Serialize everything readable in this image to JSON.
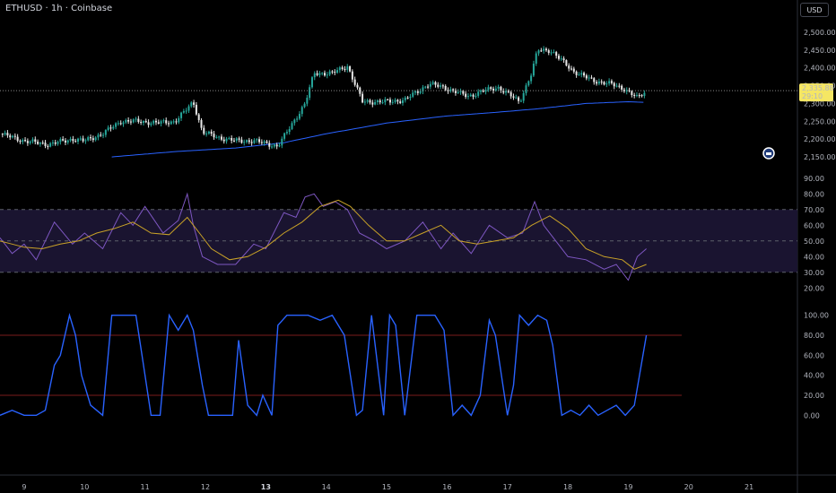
{
  "header": {
    "symbol_title": "ETHUSD · 1h · Coinbase",
    "currency_button": "USD"
  },
  "colors": {
    "background": "#000000",
    "up_candle": "#26a69a",
    "up_candle_light": "#c9e7c4",
    "ma_line": "#2962ff",
    "rsi_line": "#7e57c2",
    "rsi_ma": "#c9a227",
    "stoch_line": "#2962ff",
    "stoch_band": "#7a1c1c",
    "price_tag": "#f5e663"
  },
  "price_labels": {
    "last_price": "2,335.88",
    "countdown": "29:10"
  },
  "chart_data": [
    {
      "type": "candlestick",
      "y_ticks": [
        "2,500.00",
        "2,450.00",
        "2,400.00",
        "2,350.00",
        "2,300.00",
        "2,250.00",
        "2,200.00",
        "2,150.00"
      ],
      "y_tick_values": [
        2500,
        2450,
        2400,
        2350,
        2300,
        2250,
        2200,
        2150
      ],
      "ylim": [
        2125,
        2520
      ],
      "x_ticks": [
        "9",
        "10",
        "11",
        "12",
        "13",
        "14",
        "15",
        "16",
        "17",
        "18",
        "19",
        "20",
        "21"
      ],
      "bold_x_tick": "13",
      "x_tick_days": [
        9,
        10,
        11,
        12,
        13,
        14,
        15,
        16,
        17,
        18,
        19,
        20,
        21
      ],
      "xlim_days": [
        8.6,
        21.8
      ],
      "last_close": 2335.88,
      "close_anchors": [
        [
          8.6,
          2215
        ],
        [
          9.0,
          2195
        ],
        [
          9.4,
          2185
        ],
        [
          9.8,
          2200
        ],
        [
          10.0,
          2195
        ],
        [
          10.3,
          2215
        ],
        [
          10.6,
          2250
        ],
        [
          10.9,
          2250
        ],
        [
          11.2,
          2245
        ],
        [
          11.5,
          2250
        ],
        [
          11.7,
          2285
        ],
        [
          11.8,
          2305
        ],
        [
          11.95,
          2220
        ],
        [
          12.2,
          2205
        ],
        [
          12.5,
          2195
        ],
        [
          12.8,
          2195
        ],
        [
          13.2,
          2180
        ],
        [
          13.5,
          2260
        ],
        [
          13.65,
          2300
        ],
        [
          13.8,
          2385
        ],
        [
          14.1,
          2385
        ],
        [
          14.35,
          2405
        ],
        [
          14.6,
          2305
        ],
        [
          15.0,
          2305
        ],
        [
          15.3,
          2310
        ],
        [
          15.7,
          2355
        ],
        [
          15.95,
          2345
        ],
        [
          16.35,
          2320
        ],
        [
          16.6,
          2335
        ],
        [
          16.85,
          2345
        ],
        [
          17.2,
          2305
        ],
        [
          17.4,
          2385
        ],
        [
          17.5,
          2450
        ],
        [
          17.7,
          2450
        ],
        [
          17.9,
          2420
        ],
        [
          18.1,
          2390
        ],
        [
          18.4,
          2365
        ],
        [
          18.7,
          2355
        ],
        [
          18.95,
          2340
        ],
        [
          19.15,
          2315
        ],
        [
          19.3,
          2335.88
        ]
      ],
      "ma_anchors": [
        [
          10.45,
          2150
        ],
        [
          11.5,
          2165
        ],
        [
          12.5,
          2175
        ],
        [
          13.3,
          2190
        ],
        [
          14.0,
          2215
        ],
        [
          15.0,
          2245
        ],
        [
          16.0,
          2265
        ],
        [
          16.8,
          2275
        ],
        [
          17.5,
          2285
        ],
        [
          18.3,
          2300
        ],
        [
          19.0,
          2305
        ],
        [
          19.3,
          2303
        ]
      ]
    },
    {
      "type": "line",
      "indicator": "RSI",
      "y_ticks": [
        "90.00",
        "80.00",
        "70.00",
        "60.00",
        "50.00",
        "40.00",
        "30.00",
        "20.00"
      ],
      "y_tick_values": [
        90,
        80,
        70,
        60,
        50,
        40,
        30,
        20
      ],
      "ylim": [
        15,
        95
      ],
      "band": [
        30,
        70
      ],
      "midline": 50,
      "series": [
        {
          "role": "rsi",
          "x_days": [
            8.6,
            8.8,
            9.0,
            9.2,
            9.5,
            9.8,
            10.0,
            10.3,
            10.6,
            10.8,
            11.0,
            11.3,
            11.55,
            11.7,
            11.8,
            11.95,
            12.2,
            12.5,
            12.8,
            13.0,
            13.3,
            13.5,
            13.65,
            13.8,
            13.95,
            14.15,
            14.35,
            14.55,
            14.8,
            15.0,
            15.3,
            15.6,
            15.9,
            16.1,
            16.4,
            16.7,
            17.0,
            17.25,
            17.45,
            17.6,
            17.8,
            18.0,
            18.3,
            18.6,
            18.8,
            19.0,
            19.15,
            19.3
          ],
          "values": [
            52,
            42,
            48,
            38,
            62,
            48,
            55,
            45,
            68,
            60,
            72,
            55,
            63,
            80,
            60,
            40,
            35,
            35,
            48,
            45,
            68,
            65,
            78,
            80,
            72,
            75,
            70,
            55,
            50,
            45,
            50,
            62,
            45,
            55,
            42,
            60,
            52,
            55,
            75,
            60,
            50,
            40,
            38,
            32,
            35,
            25,
            40,
            45
          ]
        },
        {
          "role": "rsi_ma",
          "x_days": [
            8.6,
            8.8,
            9.0,
            9.3,
            9.6,
            9.9,
            10.2,
            10.5,
            10.8,
            11.1,
            11.4,
            11.7,
            11.9,
            12.1,
            12.4,
            12.7,
            13.0,
            13.3,
            13.6,
            13.9,
            14.2,
            14.4,
            14.7,
            15.0,
            15.3,
            15.6,
            15.9,
            16.2,
            16.5,
            16.8,
            17.1,
            17.4,
            17.7,
            18.0,
            18.3,
            18.6,
            18.9,
            19.1,
            19.3
          ],
          "values": [
            50,
            48,
            46,
            45,
            48,
            50,
            55,
            58,
            62,
            55,
            54,
            65,
            55,
            45,
            38,
            40,
            46,
            55,
            62,
            72,
            76,
            72,
            60,
            50,
            50,
            55,
            60,
            50,
            48,
            50,
            52,
            60,
            66,
            58,
            45,
            40,
            38,
            32,
            35
          ]
        }
      ]
    },
    {
      "type": "line",
      "indicator": "Stochastic RSI",
      "y_ticks": [
        "100.00",
        "80.00",
        "60.00",
        "40.00",
        "20.00",
        "0.00"
      ],
      "y_tick_values": [
        100,
        80,
        60,
        40,
        20,
        0
      ],
      "ylim": [
        -6,
        106
      ],
      "bands": [
        20,
        80
      ],
      "series": [
        {
          "role": "stoch",
          "x_days": [
            8.6,
            8.8,
            9.0,
            9.2,
            9.35,
            9.5,
            9.6,
            9.75,
            9.85,
            9.95,
            10.1,
            10.3,
            10.45,
            10.65,
            10.85,
            10.95,
            11.1,
            11.25,
            11.4,
            11.55,
            11.7,
            11.8,
            11.95,
            12.05,
            12.25,
            12.45,
            12.55,
            12.7,
            12.85,
            12.95,
            13.1,
            13.2,
            13.35,
            13.5,
            13.7,
            13.9,
            14.1,
            14.3,
            14.4,
            14.5,
            14.6,
            14.75,
            14.95,
            15.05,
            15.15,
            15.3,
            15.5,
            15.8,
            15.95,
            16.1,
            16.25,
            16.4,
            16.55,
            16.7,
            16.8,
            16.9,
            17.0,
            17.1,
            17.2,
            17.35,
            17.5,
            17.65,
            17.75,
            17.9,
            18.05,
            18.2,
            18.35,
            18.5,
            18.65,
            18.8,
            18.95,
            19.1,
            19.3
          ],
          "values": [
            0,
            5,
            0,
            0,
            5,
            50,
            60,
            100,
            80,
            40,
            10,
            0,
            100,
            100,
            100,
            60,
            0,
            0,
            100,
            85,
            100,
            85,
            30,
            0,
            0,
            0,
            75,
            10,
            0,
            20,
            0,
            90,
            100,
            100,
            100,
            95,
            100,
            80,
            40,
            0,
            5,
            100,
            0,
            100,
            90,
            0,
            100,
            100,
            85,
            0,
            10,
            0,
            20,
            95,
            80,
            40,
            0,
            30,
            100,
            90,
            100,
            95,
            70,
            0,
            5,
            0,
            10,
            0,
            5,
            10,
            0,
            10,
            80
          ]
        }
      ]
    }
  ]
}
